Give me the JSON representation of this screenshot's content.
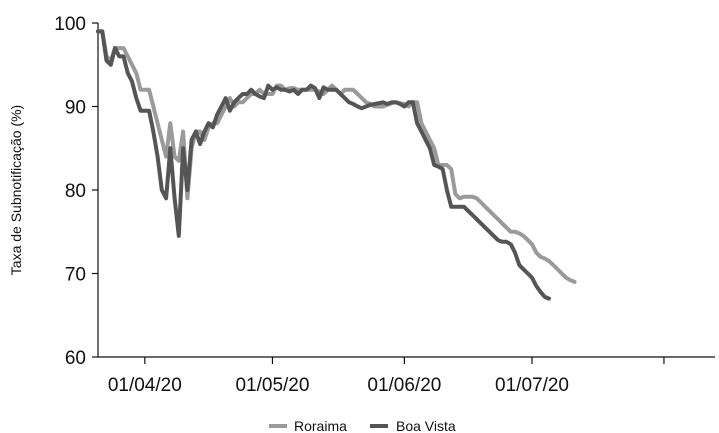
{
  "chart_data": {
    "type": "line",
    "ylabel": "Taxa de Subnotificação (%)",
    "ylim": [
      60,
      100
    ],
    "yticks": [
      60,
      70,
      80,
      90,
      100
    ],
    "xlim": [
      "2020-03-21",
      "2020-08-13"
    ],
    "xticks": [
      {
        "date": "2020-04-01",
        "label": "01/04/20"
      },
      {
        "date": "2020-05-01",
        "label": "01/05/20"
      },
      {
        "date": "2020-06-01",
        "label": "01/06/20"
      },
      {
        "date": "2020-07-01",
        "label": "01/07/20"
      },
      {
        "date": "2020-08-01",
        "label": ""
      }
    ],
    "grid": false,
    "legend": "bottom",
    "series": [
      {
        "name": "Roraima",
        "color": "#9a9a9a",
        "points": [
          [
            "2020-03-21",
            99
          ],
          [
            "2020-03-22",
            99
          ],
          [
            "2020-03-23",
            96
          ],
          [
            "2020-03-24",
            95.5
          ],
          [
            "2020-03-25",
            97
          ],
          [
            "2020-03-26",
            97
          ],
          [
            "2020-03-27",
            97
          ],
          [
            "2020-03-28",
            96
          ],
          [
            "2020-03-29",
            95
          ],
          [
            "2020-03-30",
            94
          ],
          [
            "2020-03-31",
            92
          ],
          [
            "2020-04-01",
            92
          ],
          [
            "2020-04-02",
            92
          ],
          [
            "2020-04-03",
            90
          ],
          [
            "2020-04-04",
            88
          ],
          [
            "2020-04-05",
            86
          ],
          [
            "2020-04-06",
            84
          ],
          [
            "2020-04-07",
            88
          ],
          [
            "2020-04-08",
            84
          ],
          [
            "2020-04-09",
            83.5
          ],
          [
            "2020-04-10",
            87
          ],
          [
            "2020-04-11",
            79
          ],
          [
            "2020-04-12",
            85
          ],
          [
            "2020-04-13",
            87
          ],
          [
            "2020-04-14",
            87
          ],
          [
            "2020-04-15",
            86
          ],
          [
            "2020-04-16",
            87.5
          ],
          [
            "2020-04-17",
            88
          ],
          [
            "2020-04-18",
            88
          ],
          [
            "2020-04-19",
            89
          ],
          [
            "2020-04-20",
            90
          ],
          [
            "2020-04-21",
            91
          ],
          [
            "2020-04-22",
            90
          ],
          [
            "2020-04-23",
            90.5
          ],
          [
            "2020-04-24",
            90.5
          ],
          [
            "2020-04-25",
            91
          ],
          [
            "2020-04-26",
            91.5
          ],
          [
            "2020-04-27",
            91.5
          ],
          [
            "2020-04-28",
            92
          ],
          [
            "2020-04-29",
            91.5
          ],
          [
            "2020-04-30",
            91.5
          ],
          [
            "2020-05-01",
            91.5
          ],
          [
            "2020-05-02",
            92.5
          ],
          [
            "2020-05-03",
            92.5
          ],
          [
            "2020-05-04",
            92
          ],
          [
            "2020-05-05",
            92.2
          ],
          [
            "2020-05-06",
            92.2
          ],
          [
            "2020-05-07",
            92
          ],
          [
            "2020-05-08",
            92
          ],
          [
            "2020-05-09",
            92
          ],
          [
            "2020-05-10",
            92
          ],
          [
            "2020-05-11",
            92
          ],
          [
            "2020-05-12",
            91.8
          ],
          [
            "2020-05-13",
            91.5
          ],
          [
            "2020-05-14",
            92
          ],
          [
            "2020-05-15",
            92.5
          ],
          [
            "2020-05-16",
            92
          ],
          [
            "2020-05-17",
            91.5
          ],
          [
            "2020-05-18",
            92
          ],
          [
            "2020-05-19",
            92
          ],
          [
            "2020-05-20",
            92
          ],
          [
            "2020-05-21",
            91.5
          ],
          [
            "2020-05-22",
            91
          ],
          [
            "2020-05-23",
            90.5
          ],
          [
            "2020-05-24",
            90.3
          ],
          [
            "2020-05-25",
            90
          ],
          [
            "2020-05-26",
            90
          ],
          [
            "2020-05-27",
            90
          ],
          [
            "2020-05-28",
            90.2
          ],
          [
            "2020-05-29",
            90.4
          ],
          [
            "2020-05-30",
            90.5
          ],
          [
            "2020-05-31",
            90.4
          ],
          [
            "2020-06-01",
            90.3
          ],
          [
            "2020-06-02",
            90
          ],
          [
            "2020-06-03",
            90.5
          ],
          [
            "2020-06-04",
            90.5
          ],
          [
            "2020-06-05",
            88
          ],
          [
            "2020-06-06",
            87
          ],
          [
            "2020-06-07",
            86
          ],
          [
            "2020-06-08",
            85
          ],
          [
            "2020-06-09",
            83
          ],
          [
            "2020-06-10",
            83
          ],
          [
            "2020-06-11",
            83
          ],
          [
            "2020-06-12",
            82.5
          ],
          [
            "2020-06-13",
            79.5
          ],
          [
            "2020-06-14",
            79
          ],
          [
            "2020-06-15",
            79.2
          ],
          [
            "2020-06-16",
            79.2
          ],
          [
            "2020-06-17",
            79.2
          ],
          [
            "2020-06-18",
            79
          ],
          [
            "2020-06-19",
            78.5
          ],
          [
            "2020-06-20",
            78
          ],
          [
            "2020-06-21",
            77.5
          ],
          [
            "2020-06-22",
            77
          ],
          [
            "2020-06-23",
            76.5
          ],
          [
            "2020-06-24",
            76
          ],
          [
            "2020-06-25",
            75.5
          ],
          [
            "2020-06-26",
            75
          ],
          [
            "2020-06-27",
            75
          ],
          [
            "2020-06-28",
            74.8
          ],
          [
            "2020-06-29",
            74.5
          ],
          [
            "2020-06-30",
            74
          ],
          [
            "2020-07-01",
            73.5
          ],
          [
            "2020-07-02",
            72.5
          ],
          [
            "2020-07-03",
            72
          ],
          [
            "2020-07-04",
            71.8
          ],
          [
            "2020-07-05",
            71.5
          ],
          [
            "2020-07-06",
            71
          ],
          [
            "2020-07-07",
            70.5
          ],
          [
            "2020-07-08",
            70
          ],
          [
            "2020-07-09",
            69.5
          ],
          [
            "2020-07-10",
            69.2
          ],
          [
            "2020-07-11",
            69
          ]
        ]
      },
      {
        "name": "Boa Vista",
        "color": "#555555",
        "points": [
          [
            "2020-03-21",
            99
          ],
          [
            "2020-03-22",
            99
          ],
          [
            "2020-03-23",
            95.5
          ],
          [
            "2020-03-24",
            95
          ],
          [
            "2020-03-25",
            97
          ],
          [
            "2020-03-26",
            96
          ],
          [
            "2020-03-27",
            96
          ],
          [
            "2020-03-28",
            94
          ],
          [
            "2020-03-29",
            93
          ],
          [
            "2020-03-30",
            91
          ],
          [
            "2020-03-31",
            89.5
          ],
          [
            "2020-04-01",
            89.5
          ],
          [
            "2020-04-02",
            89.5
          ],
          [
            "2020-04-03",
            87
          ],
          [
            "2020-04-04",
            84
          ],
          [
            "2020-04-05",
            80
          ],
          [
            "2020-04-06",
            79
          ],
          [
            "2020-04-07",
            85
          ],
          [
            "2020-04-08",
            79
          ],
          [
            "2020-04-09",
            74.5
          ],
          [
            "2020-04-10",
            85
          ],
          [
            "2020-04-11",
            80
          ],
          [
            "2020-04-12",
            86
          ],
          [
            "2020-04-13",
            87
          ],
          [
            "2020-04-14",
            85.5
          ],
          [
            "2020-04-15",
            87
          ],
          [
            "2020-04-16",
            88
          ],
          [
            "2020-04-17",
            87.5
          ],
          [
            "2020-04-18",
            89
          ],
          [
            "2020-04-19",
            90
          ],
          [
            "2020-04-20",
            91
          ],
          [
            "2020-04-21",
            89.5
          ],
          [
            "2020-04-22",
            90.5
          ],
          [
            "2020-04-23",
            91
          ],
          [
            "2020-04-24",
            91.5
          ],
          [
            "2020-04-25",
            91.5
          ],
          [
            "2020-04-26",
            92
          ],
          [
            "2020-04-27",
            91.5
          ],
          [
            "2020-04-28",
            91.2
          ],
          [
            "2020-04-29",
            91
          ],
          [
            "2020-04-30",
            92.5
          ],
          [
            "2020-05-01",
            92
          ],
          [
            "2020-05-02",
            92.3
          ],
          [
            "2020-05-03",
            92
          ],
          [
            "2020-05-04",
            92
          ],
          [
            "2020-05-05",
            91.8
          ],
          [
            "2020-05-06",
            92
          ],
          [
            "2020-05-07",
            91.5
          ],
          [
            "2020-05-08",
            92
          ],
          [
            "2020-05-09",
            92
          ],
          [
            "2020-05-10",
            92.5
          ],
          [
            "2020-05-11",
            92.2
          ],
          [
            "2020-05-12",
            91
          ],
          [
            "2020-05-13",
            92.3
          ],
          [
            "2020-05-14",
            92
          ],
          [
            "2020-05-15",
            92
          ],
          [
            "2020-05-16",
            92
          ],
          [
            "2020-05-17",
            91.5
          ],
          [
            "2020-05-18",
            91
          ],
          [
            "2020-05-19",
            90.5
          ],
          [
            "2020-05-20",
            90.3
          ],
          [
            "2020-05-21",
            90
          ],
          [
            "2020-05-22",
            89.8
          ],
          [
            "2020-05-23",
            90
          ],
          [
            "2020-05-24",
            90.2
          ],
          [
            "2020-05-25",
            90.3
          ],
          [
            "2020-05-26",
            90.4
          ],
          [
            "2020-05-27",
            90.5
          ],
          [
            "2020-05-28",
            90.3
          ],
          [
            "2020-05-29",
            90.5
          ],
          [
            "2020-05-30",
            90.5
          ],
          [
            "2020-05-31",
            90.3
          ],
          [
            "2020-06-01",
            90
          ],
          [
            "2020-06-02",
            90.5
          ],
          [
            "2020-06-03",
            90.5
          ],
          [
            "2020-06-04",
            88
          ],
          [
            "2020-06-05",
            87
          ],
          [
            "2020-06-06",
            86
          ],
          [
            "2020-06-07",
            85
          ],
          [
            "2020-06-08",
            83
          ],
          [
            "2020-06-09",
            82.8
          ],
          [
            "2020-06-10",
            82.5
          ],
          [
            "2020-06-11",
            80
          ],
          [
            "2020-06-12",
            78
          ],
          [
            "2020-06-13",
            78
          ],
          [
            "2020-06-14",
            78
          ],
          [
            "2020-06-15",
            78
          ],
          [
            "2020-06-16",
            77.5
          ],
          [
            "2020-06-17",
            77
          ],
          [
            "2020-06-18",
            76.5
          ],
          [
            "2020-06-19",
            76
          ],
          [
            "2020-06-20",
            75.5
          ],
          [
            "2020-06-21",
            75
          ],
          [
            "2020-06-22",
            74.5
          ],
          [
            "2020-06-23",
            74
          ],
          [
            "2020-06-24",
            73.8
          ],
          [
            "2020-06-25",
            73.8
          ],
          [
            "2020-06-26",
            73.5
          ],
          [
            "2020-06-27",
            72.5
          ],
          [
            "2020-06-28",
            71
          ],
          [
            "2020-06-29",
            70.5
          ],
          [
            "2020-06-30",
            70
          ],
          [
            "2020-07-01",
            69.5
          ],
          [
            "2020-07-02",
            68.5
          ],
          [
            "2020-07-03",
            67.8
          ],
          [
            "2020-07-04",
            67.2
          ],
          [
            "2020-07-05",
            67
          ]
        ]
      }
    ]
  }
}
